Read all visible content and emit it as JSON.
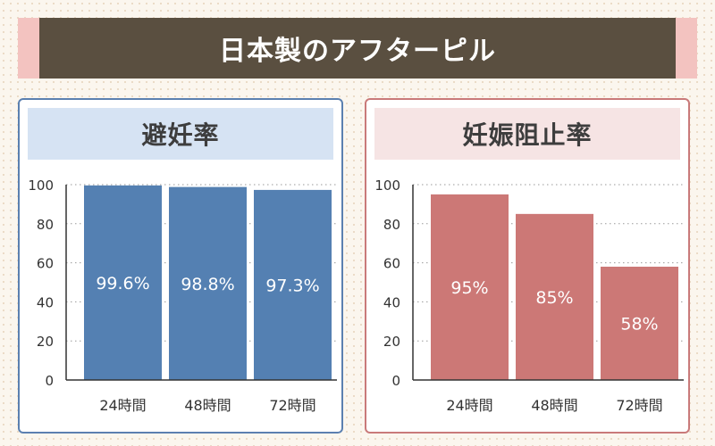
{
  "title": "日本製のアフターピル",
  "colors": {
    "left_border": "#5b80b0",
    "left_header_bg": "#d6e3f3",
    "left_bar": "#5480b2",
    "right_border": "#c97a7a",
    "right_header_bg": "#f6e4e4",
    "right_bar": "#cc7876"
  },
  "chart_data": [
    {
      "type": "bar",
      "title": "避妊率",
      "categories": [
        "24時間",
        "48時間",
        "72時間"
      ],
      "values": [
        99.6,
        98.8,
        97.3
      ],
      "data_labels": [
        "99.6%",
        "98.8%",
        "97.3%"
      ],
      "yticks": [
        0,
        20,
        40,
        60,
        80,
        100
      ],
      "ylim": [
        0,
        100
      ],
      "grid": true
    },
    {
      "type": "bar",
      "title": "妊娠阻止率",
      "categories": [
        "24時間",
        "48時間",
        "72時間"
      ],
      "values": [
        95,
        85,
        58
      ],
      "data_labels": [
        "95%",
        "85%",
        "58%"
      ],
      "yticks": [
        0,
        20,
        40,
        60,
        80,
        100
      ],
      "ylim": [
        0,
        100
      ],
      "grid": true
    }
  ]
}
